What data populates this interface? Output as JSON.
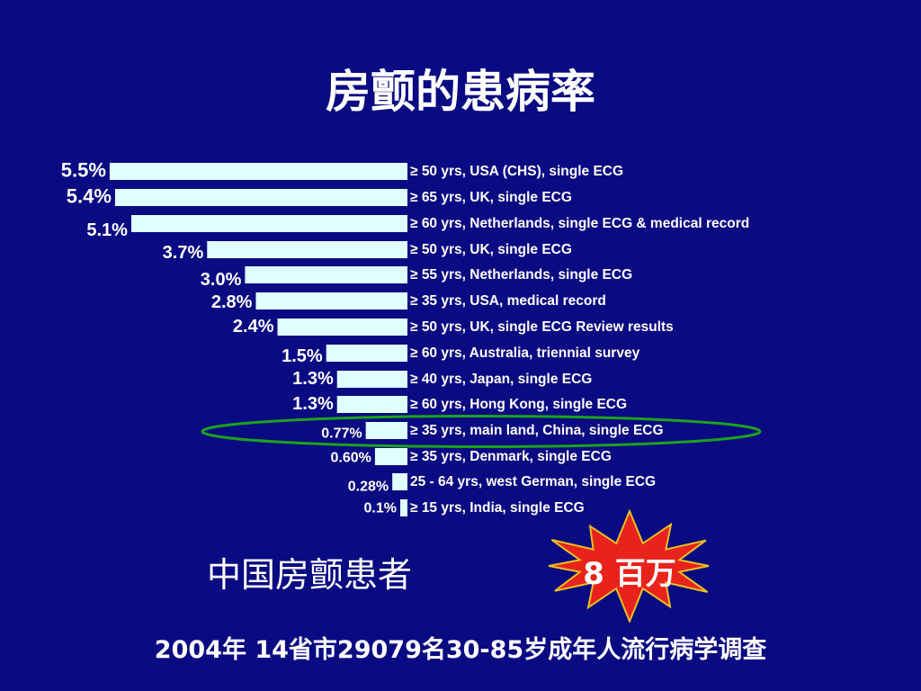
{
  "title": "房颤的患病率",
  "chart_data": {
    "type": "bar",
    "orientation": "horizontal",
    "bar_color": "#e0ffff",
    "categories": [
      "≥ 50 yrs, USA (CHS), single ECG",
      "≥ 65 yrs, UK, single ECG",
      "≥ 60 yrs, Netherlands, single ECG & medical record",
      "≥ 50 yrs, UK, single ECG",
      "≥ 55 yrs, Netherlands, single ECG",
      "≥ 35 yrs, USA, medical record",
      "≥ 50 yrs, UK, single ECG Review results",
      "≥ 60 yrs, Australia, triennial survey",
      "≥ 40 yrs, Japan, single ECG",
      "≥ 60 yrs, Hong Kong, single ECG",
      "≥ 35 yrs, main land, China, single ECG",
      "≥ 35 yrs, Denmark, single ECG",
      "25 - 64 yrs, west German, single ECG",
      "≥ 15 yrs, India, single ECG"
    ],
    "values": [
      5.5,
      5.4,
      5.1,
      3.7,
      3.0,
      2.8,
      2.4,
      1.5,
      1.3,
      1.3,
      0.77,
      0.6,
      0.28,
      0.1
    ],
    "value_labels": [
      "5.5%",
      "5.4%",
      "5.1%",
      "3.7%",
      "3.0%",
      "2.8%",
      "2.4%",
      "1.5%",
      "1.3%",
      "1.3%",
      "0.77%",
      "0.60%",
      "0.28%",
      "0.1%"
    ],
    "highlighted_index": 10,
    "highlight_color": "#1aa31a"
  },
  "subtitle": "中国房颤患者",
  "burst": {
    "label": "8 百万",
    "fill": "#e8231c",
    "stroke": "#e8c020"
  },
  "footer": "2004年 14省市29079名30-85岁成年人流行病学调查"
}
